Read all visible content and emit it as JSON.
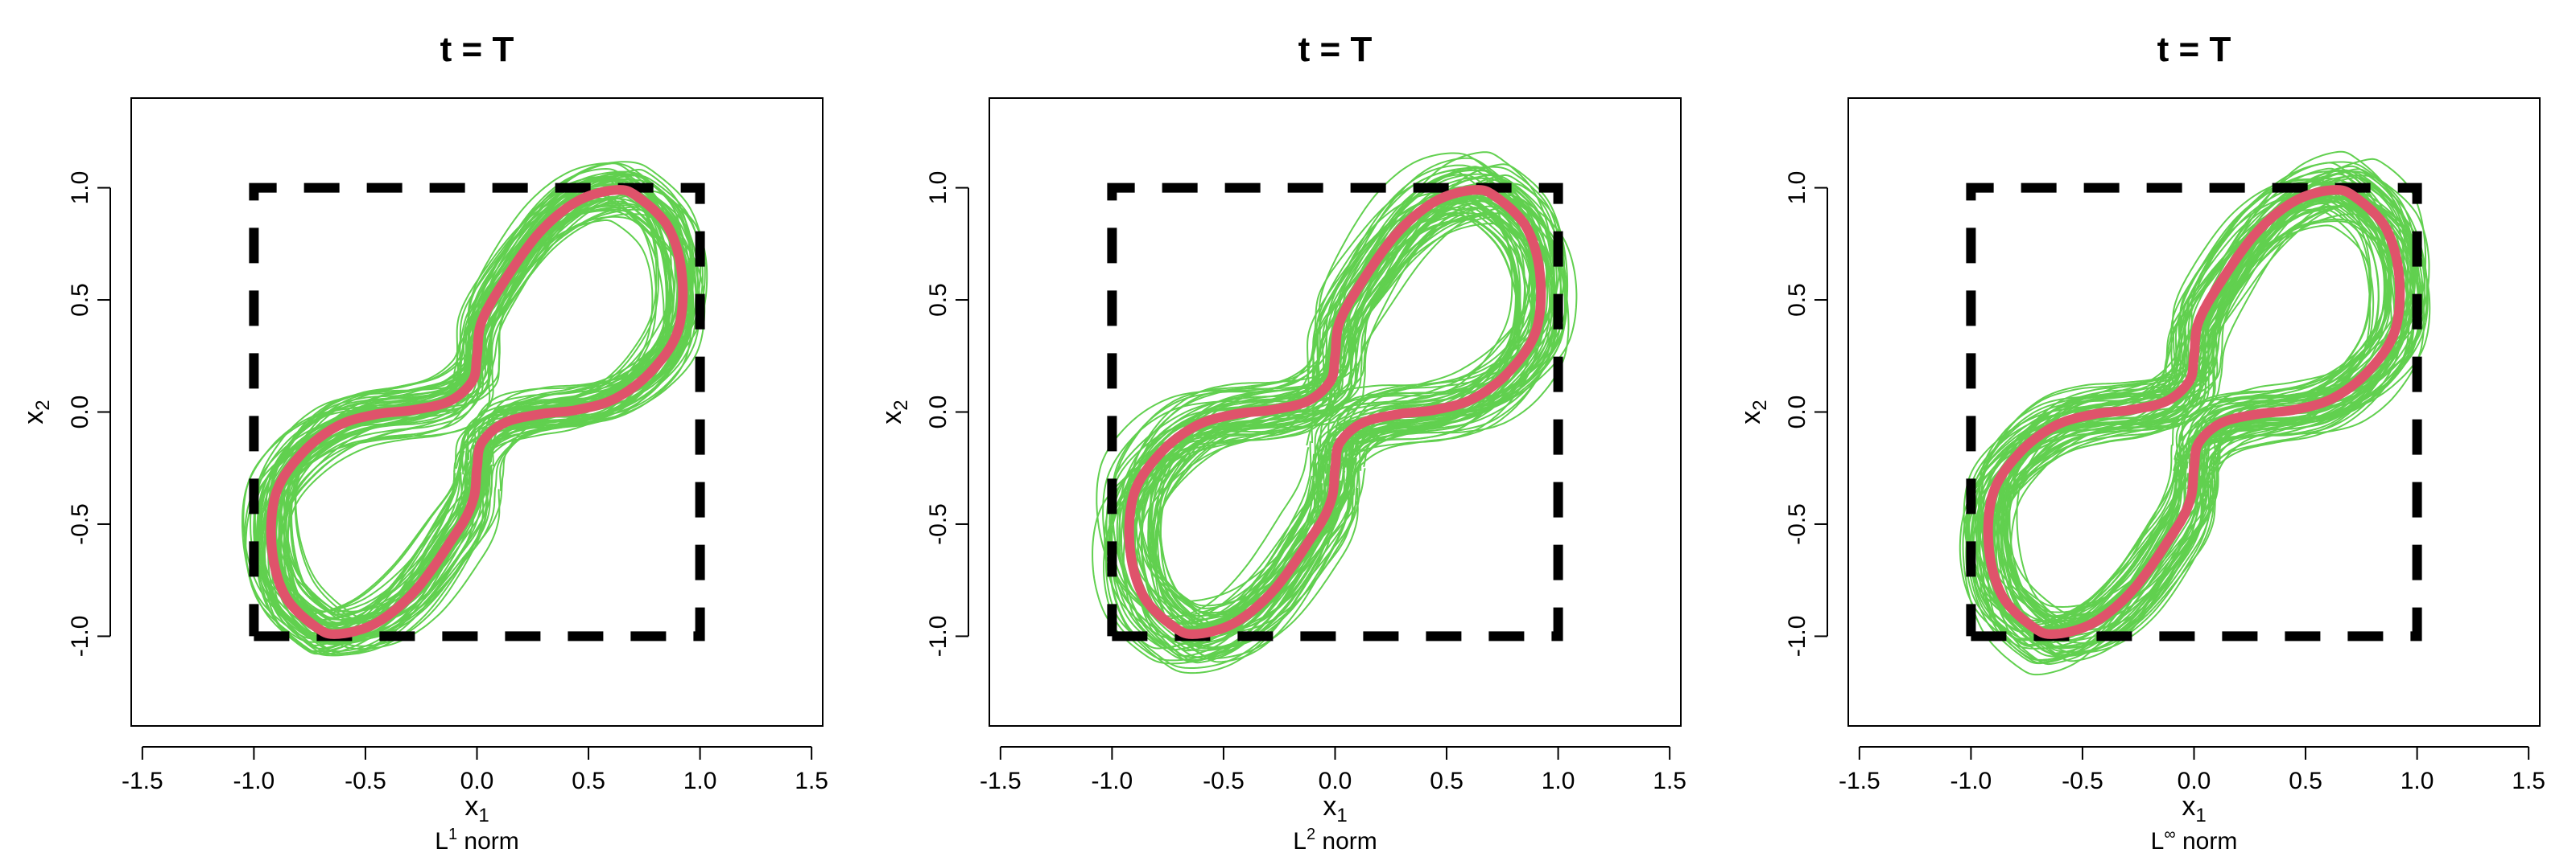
{
  "figure": {
    "panel_count": 3,
    "colors": {
      "trajectories": "#61D04F",
      "curve": "#DF536B",
      "box": "#000000",
      "axes": "#000000"
    }
  },
  "chart_data": [
    {
      "type": "line",
      "title": "t = T",
      "xlabel": {
        "main": "x",
        "sub": "1"
      },
      "ylabel": {
        "main": "x",
        "sub": "2"
      },
      "caption": {
        "pre": "L",
        "sup": "1",
        "post": " norm"
      },
      "xlim": [
        -1.55,
        1.55
      ],
      "ylim": [
        -1.4,
        1.4
      ],
      "xticks": [
        -1.5,
        -1.0,
        -0.5,
        0.0,
        0.5,
        1.0,
        1.5
      ],
      "xtick_labels": [
        "-1.5",
        "-1.0",
        "-0.5",
        "0.0",
        "0.5",
        "1.0",
        "1.5"
      ],
      "yticks": [
        -1.0,
        -0.5,
        0.0,
        0.5,
        1.0
      ],
      "ytick_labels": [
        "-1.0",
        "-0.5",
        "0.0",
        "0.5",
        "1.0"
      ],
      "grid": false,
      "series": [
        {
          "role": "reference-box",
          "style": "dashed",
          "x": [
            -1,
            1,
            1,
            -1,
            -1
          ],
          "y": [
            -1,
            -1,
            1,
            1,
            -1
          ]
        },
        {
          "role": "target-curve",
          "parametric": "x = sin(s), y = sin(s)^(1/3)·cos(s)^(1/3)·sign(...)",
          "s_range": [
            0,
            6.2832
          ]
        },
        {
          "role": "trajectory-ensemble",
          "count": 60,
          "spread": 0.09
        }
      ]
    },
    {
      "type": "line",
      "title": "t = T",
      "xlabel": {
        "main": "x",
        "sub": "1"
      },
      "ylabel": {
        "main": "x",
        "sub": "2"
      },
      "caption": {
        "pre": "L",
        "sup": "2",
        "post": " norm"
      },
      "xlim": [
        -1.55,
        1.55
      ],
      "ylim": [
        -1.4,
        1.4
      ],
      "xticks": [
        -1.5,
        -1.0,
        -0.5,
        0.0,
        0.5,
        1.0,
        1.5
      ],
      "xtick_labels": [
        "-1.5",
        "-1.0",
        "-0.5",
        "0.0",
        "0.5",
        "1.0",
        "1.5"
      ],
      "yticks": [
        -1.0,
        -0.5,
        0.0,
        0.5,
        1.0
      ],
      "ytick_labels": [
        "-1.0",
        "-0.5",
        "0.0",
        "0.5",
        "1.0"
      ],
      "grid": false,
      "series": [
        {
          "role": "reference-box",
          "style": "dashed",
          "x": [
            -1,
            1,
            1,
            -1,
            -1
          ],
          "y": [
            -1,
            -1,
            1,
            1,
            -1
          ]
        },
        {
          "role": "target-curve"
        },
        {
          "role": "trajectory-ensemble",
          "count": 60,
          "spread": 0.11
        }
      ]
    },
    {
      "type": "line",
      "title": "t = T",
      "xlabel": {
        "main": "x",
        "sub": "1"
      },
      "ylabel": {
        "main": "x",
        "sub": "2"
      },
      "caption": {
        "pre": "L",
        "sup": "∞",
        "post": " norm"
      },
      "xlim": [
        -1.55,
        1.55
      ],
      "ylim": [
        -1.4,
        1.4
      ],
      "xticks": [
        -1.5,
        -1.0,
        -0.5,
        0.0,
        0.5,
        1.0,
        1.5
      ],
      "xtick_labels": [
        "-1.5",
        "-1.0",
        "-0.5",
        "0.0",
        "0.5",
        "1.0",
        "1.5"
      ],
      "yticks": [
        -1.0,
        -0.5,
        0.0,
        0.5,
        1.0
      ],
      "ytick_labels": [
        "-1.0",
        "-0.5",
        "0.0",
        "0.5",
        "1.0"
      ],
      "grid": false,
      "series": [
        {
          "role": "reference-box",
          "style": "dashed",
          "x": [
            -1,
            1,
            1,
            -1,
            -1
          ],
          "y": [
            -1,
            -1,
            1,
            1,
            -1
          ]
        },
        {
          "role": "target-curve"
        },
        {
          "role": "trajectory-ensemble",
          "count": 60,
          "spread": 0.1
        }
      ]
    }
  ]
}
